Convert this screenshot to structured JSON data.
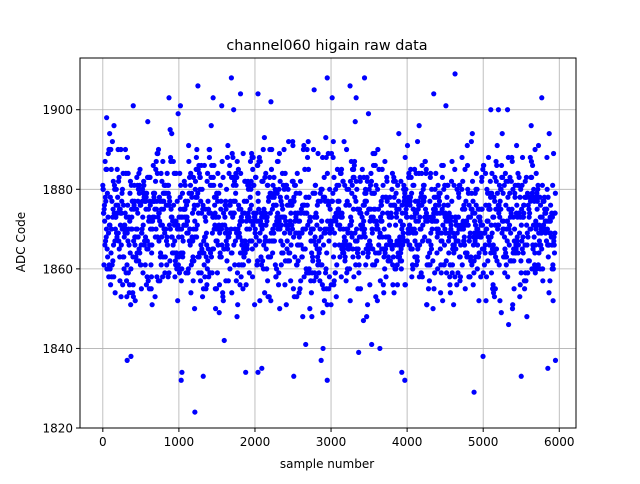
{
  "chart_data": {
    "type": "scatter",
    "title": "channel060 higain raw data",
    "xlabel": "sample number",
    "ylabel": "ADC Code",
    "xlim": [
      -300,
      6220
    ],
    "ylim": [
      1820,
      1913
    ],
    "xticks": [
      0,
      1000,
      2000,
      3000,
      4000,
      5000,
      6000
    ],
    "yticks": [
      1820,
      1840,
      1860,
      1880,
      1900
    ],
    "grid": true,
    "marker_color": "#0000ff",
    "marker": "circle",
    "n_samples": 5952,
    "baseline_value": 1871,
    "noise_sigma": 9.5,
    "dense_value_range": [
      1853,
      1890
    ],
    "sampled_points": [
      {
        "x": 1210,
        "y": 1824
      },
      {
        "x": 1030,
        "y": 1832
      },
      {
        "x": 1040,
        "y": 1834
      },
      {
        "x": 1320,
        "y": 1833
      },
      {
        "x": 2040,
        "y": 1834
      },
      {
        "x": 2090,
        "y": 1835
      },
      {
        "x": 2510,
        "y": 1833
      },
      {
        "x": 2950,
        "y": 1832
      },
      {
        "x": 2870,
        "y": 1837
      },
      {
        "x": 3930,
        "y": 1834
      },
      {
        "x": 3970,
        "y": 1832
      },
      {
        "x": 4880,
        "y": 1829
      },
      {
        "x": 5500,
        "y": 1833
      },
      {
        "x": 5850,
        "y": 1835
      },
      {
        "x": 5950,
        "y": 1837
      },
      {
        "x": 320,
        "y": 1837
      },
      {
        "x": 370,
        "y": 1838
      },
      {
        "x": 1250,
        "y": 1906
      },
      {
        "x": 1690,
        "y": 1908
      },
      {
        "x": 2950,
        "y": 1908
      },
      {
        "x": 3440,
        "y": 1908
      },
      {
        "x": 4630,
        "y": 1909
      },
      {
        "x": 3250,
        "y": 1906
      },
      {
        "x": 1450,
        "y": 1903
      },
      {
        "x": 870,
        "y": 1903
      },
      {
        "x": 2210,
        "y": 1902
      },
      {
        "x": 2040,
        "y": 1904
      },
      {
        "x": 1810,
        "y": 1904
      },
      {
        "x": 3330,
        "y": 1903
      },
      {
        "x": 4350,
        "y": 1904
      },
      {
        "x": 5770,
        "y": 1903
      },
      {
        "x": 5100,
        "y": 1900
      },
      {
        "x": 5200,
        "y": 1900
      },
      {
        "x": 5320,
        "y": 1900
      },
      {
        "x": 400,
        "y": 1901
      },
      {
        "x": 1020,
        "y": 1901
      },
      {
        "x": 1720,
        "y": 1900
      },
      {
        "x": 4510,
        "y": 1901
      },
      {
        "x": 50,
        "y": 1898
      }
    ]
  }
}
